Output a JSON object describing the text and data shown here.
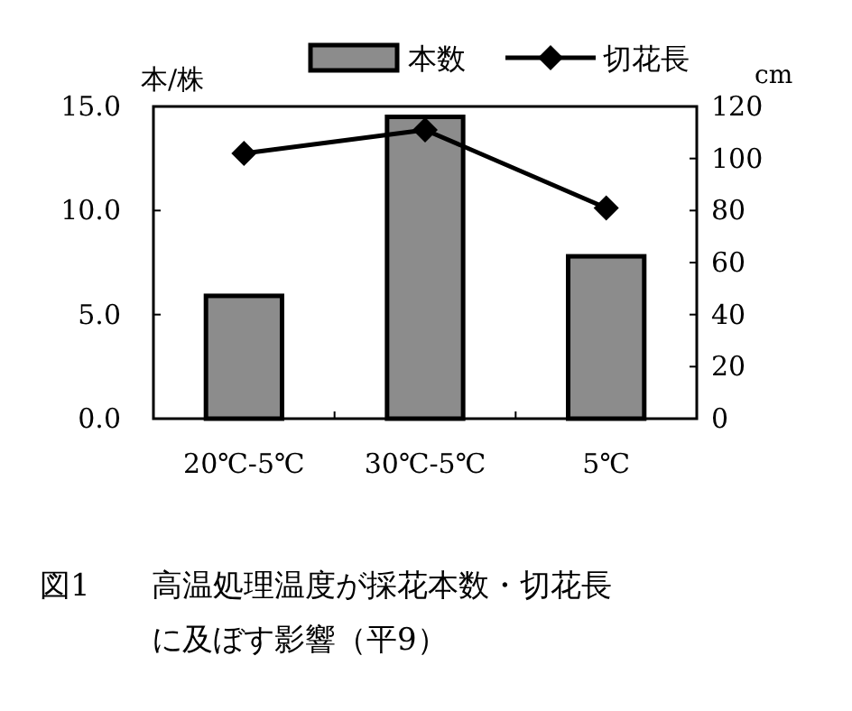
{
  "chart_data": {
    "type": "bar",
    "title": "高温処理温度が採花本数・切花長に及ぼす影響（平9）",
    "annotations": [
      "図1"
    ],
    "ylabel": "本/株",
    "y2label": "cm",
    "categories": [
      "20℃-5℃",
      "30℃-5℃",
      "5℃"
    ],
    "series": [
      {
        "name": "本数",
        "color": "#8c8c8c",
        "values": [
          5.9,
          14.5,
          7.8
        ]
      },
      {
        "name": "切花長",
        "type": "line",
        "axis": "y2",
        "color": "#000000",
        "marker": "diamond",
        "values": [
          102,
          111,
          81
        ]
      }
    ],
    "ylim": [
      0,
      15
    ],
    "yticks": [
      {
        "value": 0,
        "label": "0.0"
      },
      {
        "value": 5,
        "label": "5.0"
      },
      {
        "value": 10,
        "label": "10.0"
      },
      {
        "value": 15,
        "label": "15.0"
      }
    ],
    "y2lim": [
      0,
      120
    ],
    "y2ticks": [
      0,
      20,
      40,
      60,
      80,
      100,
      120
    ],
    "grid": false,
    "legend": "top"
  }
}
